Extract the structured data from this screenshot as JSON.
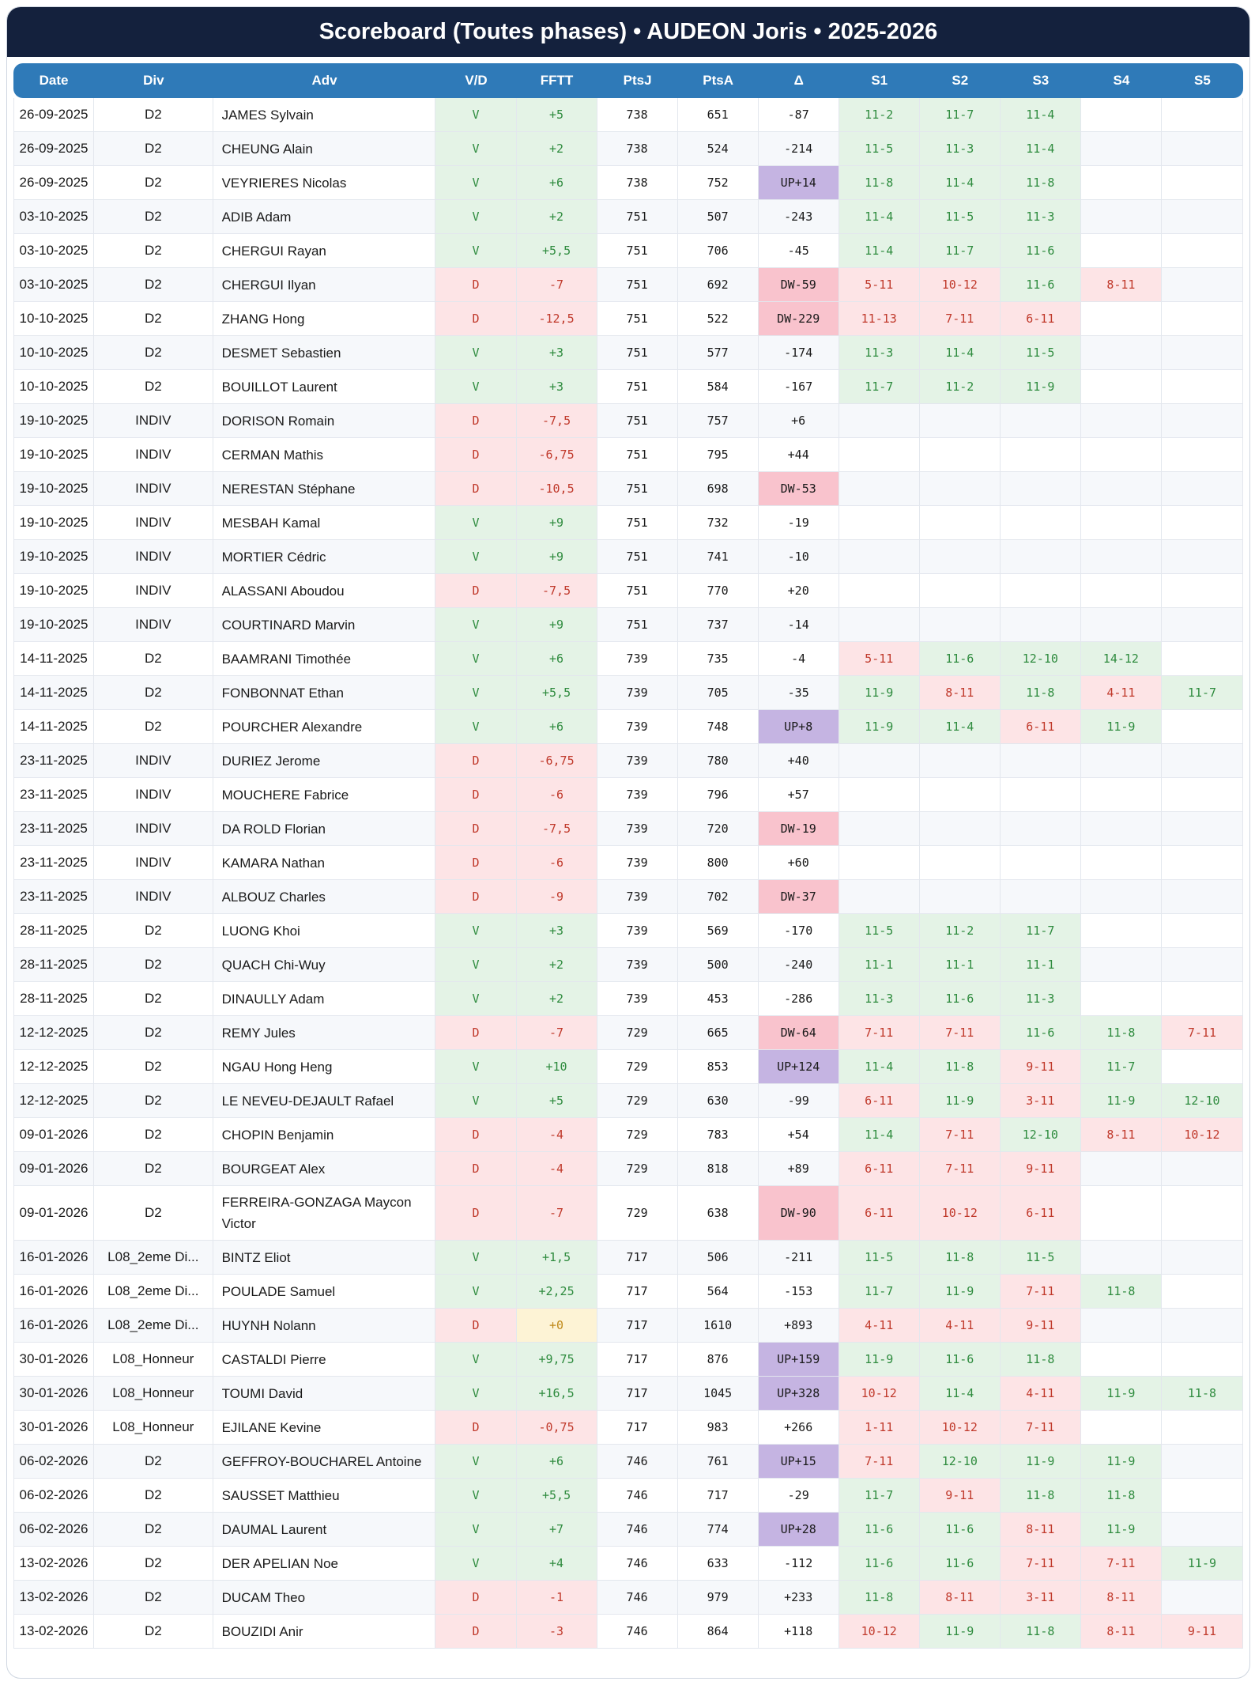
{
  "header": {
    "title": "Scoreboard (Toutes phases) • AUDEON Joris • 2025-2026"
  },
  "colors": {
    "title_bg": "#14213d",
    "header_bg": "#2f7ab8",
    "win": "#e4f3e6",
    "loss": "#fde4e6",
    "up": "#c5b4e2",
    "down": "#f9c3cd",
    "neutral": "#fdf3d5"
  },
  "columns": [
    "Date",
    "Div",
    "Adv",
    "V/D",
    "FFTT",
    "PtsJ",
    "PtsA",
    "Δ",
    "S1",
    "S2",
    "S3",
    "S4",
    "S5"
  ],
  "rows": [
    {
      "date": "26-09-2025",
      "div": "D2",
      "adv": "JAMES Sylvain",
      "vd": "V",
      "fftt": "+5",
      "ptsj": "738",
      "ptsa": "651",
      "delta": "-87",
      "sets": [
        "11-2",
        "11-7",
        "11-4",
        "",
        ""
      ]
    },
    {
      "date": "26-09-2025",
      "div": "D2",
      "adv": "CHEUNG Alain",
      "vd": "V",
      "fftt": "+2",
      "ptsj": "738",
      "ptsa": "524",
      "delta": "-214",
      "sets": [
        "11-5",
        "11-3",
        "11-4",
        "",
        ""
      ]
    },
    {
      "date": "26-09-2025",
      "div": "D2",
      "adv": "VEYRIERES Nicolas",
      "vd": "V",
      "fftt": "+6",
      "ptsj": "738",
      "ptsa": "752",
      "delta": "UP+14",
      "sets": [
        "11-8",
        "11-4",
        "11-8",
        "",
        ""
      ]
    },
    {
      "date": "03-10-2025",
      "div": "D2",
      "adv": "ADIB Adam",
      "vd": "V",
      "fftt": "+2",
      "ptsj": "751",
      "ptsa": "507",
      "delta": "-243",
      "sets": [
        "11-4",
        "11-5",
        "11-3",
        "",
        ""
      ]
    },
    {
      "date": "03-10-2025",
      "div": "D2",
      "adv": "CHERGUI Rayan",
      "vd": "V",
      "fftt": "+5,5",
      "ptsj": "751",
      "ptsa": "706",
      "delta": "-45",
      "sets": [
        "11-4",
        "11-7",
        "11-6",
        "",
        ""
      ]
    },
    {
      "date": "03-10-2025",
      "div": "D2",
      "adv": "CHERGUI Ilyan",
      "vd": "D",
      "fftt": "-7",
      "ptsj": "751",
      "ptsa": "692",
      "delta": "DW-59",
      "sets": [
        "5-11",
        "10-12",
        "11-6",
        "8-11",
        ""
      ]
    },
    {
      "date": "10-10-2025",
      "div": "D2",
      "adv": "ZHANG Hong",
      "vd": "D",
      "fftt": "-12,5",
      "ptsj": "751",
      "ptsa": "522",
      "delta": "DW-229",
      "sets": [
        "11-13",
        "7-11",
        "6-11",
        "",
        ""
      ]
    },
    {
      "date": "10-10-2025",
      "div": "D2",
      "adv": "DESMET Sebastien",
      "vd": "V",
      "fftt": "+3",
      "ptsj": "751",
      "ptsa": "577",
      "delta": "-174",
      "sets": [
        "11-3",
        "11-4",
        "11-5",
        "",
        ""
      ]
    },
    {
      "date": "10-10-2025",
      "div": "D2",
      "adv": "BOUILLOT Laurent",
      "vd": "V",
      "fftt": "+3",
      "ptsj": "751",
      "ptsa": "584",
      "delta": "-167",
      "sets": [
        "11-7",
        "11-2",
        "11-9",
        "",
        ""
      ]
    },
    {
      "date": "19-10-2025",
      "div": "INDIV",
      "adv": "DORISON Romain",
      "vd": "D",
      "fftt": "-7,5",
      "ptsj": "751",
      "ptsa": "757",
      "delta": "+6",
      "sets": [
        "",
        "",
        "",
        "",
        ""
      ]
    },
    {
      "date": "19-10-2025",
      "div": "INDIV",
      "adv": "CERMAN Mathis",
      "vd": "D",
      "fftt": "-6,75",
      "ptsj": "751",
      "ptsa": "795",
      "delta": "+44",
      "sets": [
        "",
        "",
        "",
        "",
        ""
      ]
    },
    {
      "date": "19-10-2025",
      "div": "INDIV",
      "adv": "NERESTAN Stéphane",
      "vd": "D",
      "fftt": "-10,5",
      "ptsj": "751",
      "ptsa": "698",
      "delta": "DW-53",
      "sets": [
        "",
        "",
        "",
        "",
        ""
      ]
    },
    {
      "date": "19-10-2025",
      "div": "INDIV",
      "adv": "MESBAH Kamal",
      "vd": "V",
      "fftt": "+9",
      "ptsj": "751",
      "ptsa": "732",
      "delta": "-19",
      "sets": [
        "",
        "",
        "",
        "",
        ""
      ]
    },
    {
      "date": "19-10-2025",
      "div": "INDIV",
      "adv": "MORTIER Cédric",
      "vd": "V",
      "fftt": "+9",
      "ptsj": "751",
      "ptsa": "741",
      "delta": "-10",
      "sets": [
        "",
        "",
        "",
        "",
        ""
      ]
    },
    {
      "date": "19-10-2025",
      "div": "INDIV",
      "adv": "ALASSANI Aboudou",
      "vd": "D",
      "fftt": "-7,5",
      "ptsj": "751",
      "ptsa": "770",
      "delta": "+20",
      "sets": [
        "",
        "",
        "",
        "",
        ""
      ]
    },
    {
      "date": "19-10-2025",
      "div": "INDIV",
      "adv": "COURTINARD Marvin",
      "vd": "V",
      "fftt": "+9",
      "ptsj": "751",
      "ptsa": "737",
      "delta": "-14",
      "sets": [
        "",
        "",
        "",
        "",
        ""
      ]
    },
    {
      "date": "14-11-2025",
      "div": "D2",
      "adv": "BAAMRANI Timothée",
      "vd": "V",
      "fftt": "+6",
      "ptsj": "739",
      "ptsa": "735",
      "delta": "-4",
      "sets": [
        "5-11",
        "11-6",
        "12-10",
        "14-12",
        ""
      ]
    },
    {
      "date": "14-11-2025",
      "div": "D2",
      "adv": "FONBONNAT Ethan",
      "vd": "V",
      "fftt": "+5,5",
      "ptsj": "739",
      "ptsa": "705",
      "delta": "-35",
      "sets": [
        "11-9",
        "8-11",
        "11-8",
        "4-11",
        "11-7"
      ]
    },
    {
      "date": "14-11-2025",
      "div": "D2",
      "adv": "POURCHER Alexandre",
      "vd": "V",
      "fftt": "+6",
      "ptsj": "739",
      "ptsa": "748",
      "delta": "UP+8",
      "sets": [
        "11-9",
        "11-4",
        "6-11",
        "11-9",
        ""
      ]
    },
    {
      "date": "23-11-2025",
      "div": "INDIV",
      "adv": "DURIEZ Jerome",
      "vd": "D",
      "fftt": "-6,75",
      "ptsj": "739",
      "ptsa": "780",
      "delta": "+40",
      "sets": [
        "",
        "",
        "",
        "",
        ""
      ]
    },
    {
      "date": "23-11-2025",
      "div": "INDIV",
      "adv": "MOUCHERE Fabrice",
      "vd": "D",
      "fftt": "-6",
      "ptsj": "739",
      "ptsa": "796",
      "delta": "+57",
      "sets": [
        "",
        "",
        "",
        "",
        ""
      ]
    },
    {
      "date": "23-11-2025",
      "div": "INDIV",
      "adv": "DA ROLD Florian",
      "vd": "D",
      "fftt": "-7,5",
      "ptsj": "739",
      "ptsa": "720",
      "delta": "DW-19",
      "sets": [
        "",
        "",
        "",
        "",
        ""
      ]
    },
    {
      "date": "23-11-2025",
      "div": "INDIV",
      "adv": "KAMARA Nathan",
      "vd": "D",
      "fftt": "-6",
      "ptsj": "739",
      "ptsa": "800",
      "delta": "+60",
      "sets": [
        "",
        "",
        "",
        "",
        ""
      ]
    },
    {
      "date": "23-11-2025",
      "div": "INDIV",
      "adv": "ALBOUZ Charles",
      "vd": "D",
      "fftt": "-9",
      "ptsj": "739",
      "ptsa": "702",
      "delta": "DW-37",
      "sets": [
        "",
        "",
        "",
        "",
        ""
      ]
    },
    {
      "date": "28-11-2025",
      "div": "D2",
      "adv": "LUONG Khoi",
      "vd": "V",
      "fftt": "+3",
      "ptsj": "739",
      "ptsa": "569",
      "delta": "-170",
      "sets": [
        "11-5",
        "11-2",
        "11-7",
        "",
        ""
      ]
    },
    {
      "date": "28-11-2025",
      "div": "D2",
      "adv": "QUACH Chi-Wuy",
      "vd": "V",
      "fftt": "+2",
      "ptsj": "739",
      "ptsa": "500",
      "delta": "-240",
      "sets": [
        "11-1",
        "11-1",
        "11-1",
        "",
        ""
      ]
    },
    {
      "date": "28-11-2025",
      "div": "D2",
      "adv": "DINAULLY Adam",
      "vd": "V",
      "fftt": "+2",
      "ptsj": "739",
      "ptsa": "453",
      "delta": "-286",
      "sets": [
        "11-3",
        "11-6",
        "11-3",
        "",
        ""
      ]
    },
    {
      "date": "12-12-2025",
      "div": "D2",
      "adv": "REMY Jules",
      "vd": "D",
      "fftt": "-7",
      "ptsj": "729",
      "ptsa": "665",
      "delta": "DW-64",
      "sets": [
        "7-11",
        "7-11",
        "11-6",
        "11-8",
        "7-11"
      ]
    },
    {
      "date": "12-12-2025",
      "div": "D2",
      "adv": "NGAU Hong Heng",
      "vd": "V",
      "fftt": "+10",
      "ptsj": "729",
      "ptsa": "853",
      "delta": "UP+124",
      "sets": [
        "11-4",
        "11-8",
        "9-11",
        "11-7",
        ""
      ]
    },
    {
      "date": "12-12-2025",
      "div": "D2",
      "adv": "LE NEVEU-DEJAULT Rafael",
      "vd": "V",
      "fftt": "+5",
      "ptsj": "729",
      "ptsa": "630",
      "delta": "-99",
      "sets": [
        "6-11",
        "11-9",
        "3-11",
        "11-9",
        "12-10"
      ]
    },
    {
      "date": "09-01-2026",
      "div": "D2",
      "adv": "CHOPIN Benjamin",
      "vd": "D",
      "fftt": "-4",
      "ptsj": "729",
      "ptsa": "783",
      "delta": "+54",
      "sets": [
        "11-4",
        "7-11",
        "12-10",
        "8-11",
        "10-12"
      ]
    },
    {
      "date": "09-01-2026",
      "div": "D2",
      "adv": "BOURGEAT Alex",
      "vd": "D",
      "fftt": "-4",
      "ptsj": "729",
      "ptsa": "818",
      "delta": "+89",
      "sets": [
        "6-11",
        "7-11",
        "9-11",
        "",
        ""
      ]
    },
    {
      "date": "09-01-2026",
      "div": "D2",
      "adv": "FERREIRA-GONZAGA Maycon Victor",
      "vd": "D",
      "fftt": "-7",
      "ptsj": "729",
      "ptsa": "638",
      "delta": "DW-90",
      "sets": [
        "6-11",
        "10-12",
        "6-11",
        "",
        ""
      ]
    },
    {
      "date": "16-01-2026",
      "div": "L08_2eme Di...",
      "adv": "BINTZ Eliot",
      "vd": "V",
      "fftt": "+1,5",
      "ptsj": "717",
      "ptsa": "506",
      "delta": "-211",
      "sets": [
        "11-5",
        "11-8",
        "11-5",
        "",
        ""
      ]
    },
    {
      "date": "16-01-2026",
      "div": "L08_2eme Di...",
      "adv": "POULADE Samuel",
      "vd": "V",
      "fftt": "+2,25",
      "ptsj": "717",
      "ptsa": "564",
      "delta": "-153",
      "sets": [
        "11-7",
        "11-9",
        "7-11",
        "11-8",
        ""
      ]
    },
    {
      "date": "16-01-2026",
      "div": "L08_2eme Di...",
      "adv": "HUYNH Nolann",
      "vd": "D",
      "fftt": "+0",
      "ptsj": "717",
      "ptsa": "1610",
      "delta": "+893",
      "sets": [
        "4-11",
        "4-11",
        "9-11",
        "",
        ""
      ]
    },
    {
      "date": "30-01-2026",
      "div": "L08_Honneur",
      "adv": "CASTALDI Pierre",
      "vd": "V",
      "fftt": "+9,75",
      "ptsj": "717",
      "ptsa": "876",
      "delta": "UP+159",
      "sets": [
        "11-9",
        "11-6",
        "11-8",
        "",
        ""
      ]
    },
    {
      "date": "30-01-2026",
      "div": "L08_Honneur",
      "adv": "TOUMI David",
      "vd": "V",
      "fftt": "+16,5",
      "ptsj": "717",
      "ptsa": "1045",
      "delta": "UP+328",
      "sets": [
        "10-12",
        "11-4",
        "4-11",
        "11-9",
        "11-8"
      ]
    },
    {
      "date": "30-01-2026",
      "div": "L08_Honneur",
      "adv": "EJILANE Kevine",
      "vd": "D",
      "fftt": "-0,75",
      "ptsj": "717",
      "ptsa": "983",
      "delta": "+266",
      "sets": [
        "1-11",
        "10-12",
        "7-11",
        "",
        ""
      ]
    },
    {
      "date": "06-02-2026",
      "div": "D2",
      "adv": "GEFFROY-BOUCHAREL Antoine",
      "vd": "V",
      "fftt": "+6",
      "ptsj": "746",
      "ptsa": "761",
      "delta": "UP+15",
      "sets": [
        "7-11",
        "12-10",
        "11-9",
        "11-9",
        ""
      ]
    },
    {
      "date": "06-02-2026",
      "div": "D2",
      "adv": "SAUSSET Matthieu",
      "vd": "V",
      "fftt": "+5,5",
      "ptsj": "746",
      "ptsa": "717",
      "delta": "-29",
      "sets": [
        "11-7",
        "9-11",
        "11-8",
        "11-8",
        ""
      ]
    },
    {
      "date": "06-02-2026",
      "div": "D2",
      "adv": "DAUMAL Laurent",
      "vd": "V",
      "fftt": "+7",
      "ptsj": "746",
      "ptsa": "774",
      "delta": "UP+28",
      "sets": [
        "11-6",
        "11-6",
        "8-11",
        "11-9",
        ""
      ]
    },
    {
      "date": "13-02-2026",
      "div": "D2",
      "adv": "DER APELIAN Noe",
      "vd": "V",
      "fftt": "+4",
      "ptsj": "746",
      "ptsa": "633",
      "delta": "-112",
      "sets": [
        "11-6",
        "11-6",
        "7-11",
        "7-11",
        "11-9"
      ]
    },
    {
      "date": "13-02-2026",
      "div": "D2",
      "adv": "DUCAM Theo",
      "vd": "D",
      "fftt": "-1",
      "ptsj": "746",
      "ptsa": "979",
      "delta": "+233",
      "sets": [
        "11-8",
        "8-11",
        "3-11",
        "8-11",
        ""
      ]
    },
    {
      "date": "13-02-2026",
      "div": "D2",
      "adv": "BOUZIDI Anir",
      "vd": "D",
      "fftt": "-3",
      "ptsj": "746",
      "ptsa": "864",
      "delta": "+118",
      "sets": [
        "10-12",
        "11-9",
        "11-8",
        "8-11",
        "9-11"
      ]
    }
  ]
}
